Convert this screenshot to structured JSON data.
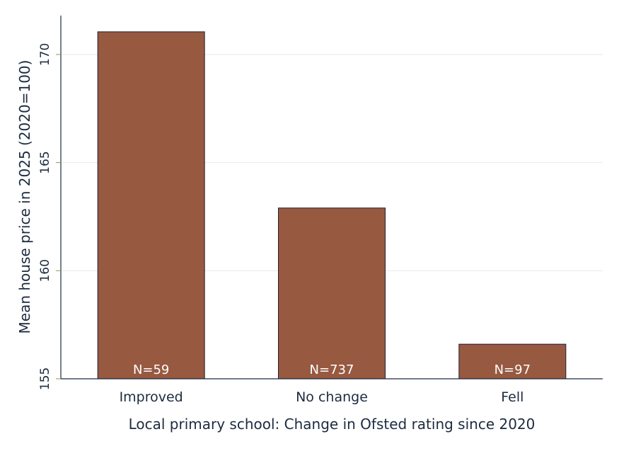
{
  "chart_data": {
    "type": "bar",
    "title": "",
    "xlabel": "Local primary school: Change in Ofsted rating since 2020",
    "ylabel": "Mean house price in 2025 (2020=100)",
    "categories": [
      "Improved",
      "No change",
      "Fell"
    ],
    "values": [
      171.05,
      162.9,
      156.6
    ],
    "data_labels": [
      "N=59",
      "N=737",
      "N=97"
    ],
    "ylim": [
      155,
      171.8
    ],
    "yticks": [
      155,
      160,
      165,
      170
    ],
    "ytick_labels": [
      "155",
      "160",
      "165",
      "170"
    ],
    "grid": true,
    "legend": "none",
    "colors": {
      "bar": "#985941",
      "bar_edge": "#1f1f2e",
      "text": "#1c2b3f",
      "grid": "#eaeaea",
      "tick": "#7aa04a"
    }
  }
}
